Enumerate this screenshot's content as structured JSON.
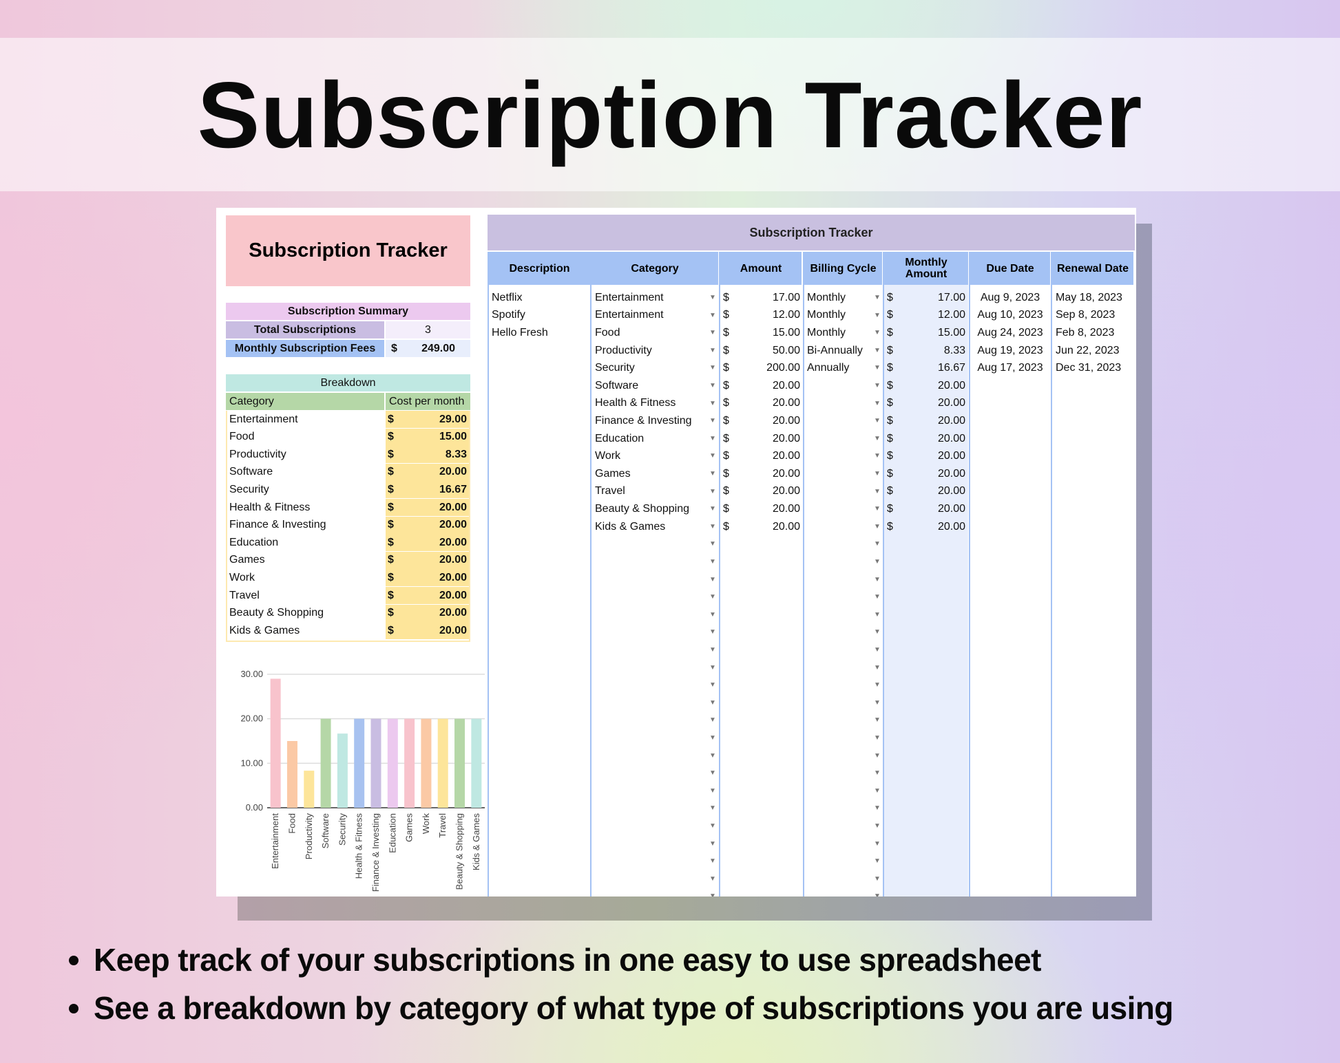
{
  "banner_title": "Subscription Tracker",
  "left": {
    "title": "Subscription Tracker",
    "summary": {
      "header": "Subscription Summary",
      "total_label": "Total Subscriptions",
      "total_value": "3",
      "fees_label": "Monthly Subscription Fees",
      "fees_currency": "$",
      "fees_value": "249.00"
    },
    "breakdown": {
      "header": "Breakdown",
      "col_category": "Category",
      "col_cost": "Cost per month",
      "currency": "$",
      "rows": [
        [
          "Entertainment",
          "29.00"
        ],
        [
          "Food",
          "15.00"
        ],
        [
          "Productivity",
          "8.33"
        ],
        [
          "Software",
          "20.00"
        ],
        [
          "Security",
          "16.67"
        ],
        [
          "Health & Fitness",
          "20.00"
        ],
        [
          "Finance & Investing",
          "20.00"
        ],
        [
          "Education",
          "20.00"
        ],
        [
          "Games",
          "20.00"
        ],
        [
          "Work",
          "20.00"
        ],
        [
          "Travel",
          "20.00"
        ],
        [
          "Beauty & Shopping",
          "20.00"
        ],
        [
          "Kids & Games",
          "20.00"
        ]
      ]
    }
  },
  "chart_data": {
    "type": "bar",
    "categories": [
      "Entertainment",
      "Food",
      "Productivity",
      "Software",
      "Security",
      "Health & Fitness",
      "Finance & Investing",
      "Education",
      "Games",
      "Work",
      "Travel",
      "Beauty & Shopping",
      "Kids & Games"
    ],
    "values": [
      29,
      15,
      8.33,
      20,
      16.67,
      20,
      20,
      20,
      20,
      20,
      20,
      20,
      20
    ],
    "ylim": [
      0,
      30
    ],
    "yticks": [
      "0.00",
      "10.00",
      "20.00",
      "30.00"
    ],
    "grid": true,
    "colors": [
      "#f8c3cc",
      "#fbc9a5",
      "#fde59a",
      "#b5d7a7",
      "#bfe8e2",
      "#a8c2f0",
      "#c9bde2",
      "#ecc9ef",
      "#f8c3cc",
      "#fbc9a5",
      "#fde59a",
      "#b5d7a7",
      "#bfe8e2"
    ]
  },
  "main": {
    "title": "Subscription Tracker",
    "headers": [
      "Description",
      "Category",
      "Amount",
      "Billing Cycle",
      "Monthly Amount",
      "Due Date",
      "Renewal Date"
    ],
    "currency": "$",
    "rows": [
      [
        "Netflix",
        "Entertainment",
        "17.00",
        "Monthly",
        "17.00",
        "Aug 9, 2023",
        "May 18, 2023"
      ],
      [
        "Spotify",
        "Entertainment",
        "12.00",
        "Monthly",
        "12.00",
        "Aug 10, 2023",
        "Sep 8, 2023"
      ],
      [
        "Hello Fresh",
        "Food",
        "15.00",
        "Monthly",
        "15.00",
        "Aug 24, 2023",
        "Feb 8, 2023"
      ],
      [
        "",
        "Productivity",
        "50.00",
        "Bi-Annually",
        "8.33",
        "Aug 19, 2023",
        "Jun 22, 2023"
      ],
      [
        "",
        "Security",
        "200.00",
        "Annually",
        "16.67",
        "Aug 17, 2023",
        "Dec 31, 2023"
      ],
      [
        "",
        "Software",
        "20.00",
        "",
        "20.00",
        "",
        ""
      ],
      [
        "",
        "Health & Fitness",
        "20.00",
        "",
        "20.00",
        "",
        ""
      ],
      [
        "",
        "Finance & Investing",
        "20.00",
        "",
        "20.00",
        "",
        ""
      ],
      [
        "",
        "Education",
        "20.00",
        "",
        "20.00",
        "",
        ""
      ],
      [
        "",
        "Work",
        "20.00",
        "",
        "20.00",
        "",
        ""
      ],
      [
        "",
        "Games",
        "20.00",
        "",
        "20.00",
        "",
        ""
      ],
      [
        "",
        "Travel",
        "20.00",
        "",
        "20.00",
        "",
        ""
      ],
      [
        "",
        "Beauty & Shopping",
        "20.00",
        "",
        "20.00",
        "",
        ""
      ],
      [
        "",
        "Kids & Games",
        "20.00",
        "",
        "20.00",
        "",
        ""
      ]
    ],
    "colors": {
      "title_bg": "#c9c0e0",
      "header_bg": "#a4c2f4",
      "monthly_bg": "#e8eefc"
    }
  },
  "bullets": [
    "Keep track of your subscriptions in one easy to use spreadsheet",
    "See a breakdown by category of what type of subscriptions you are using"
  ]
}
